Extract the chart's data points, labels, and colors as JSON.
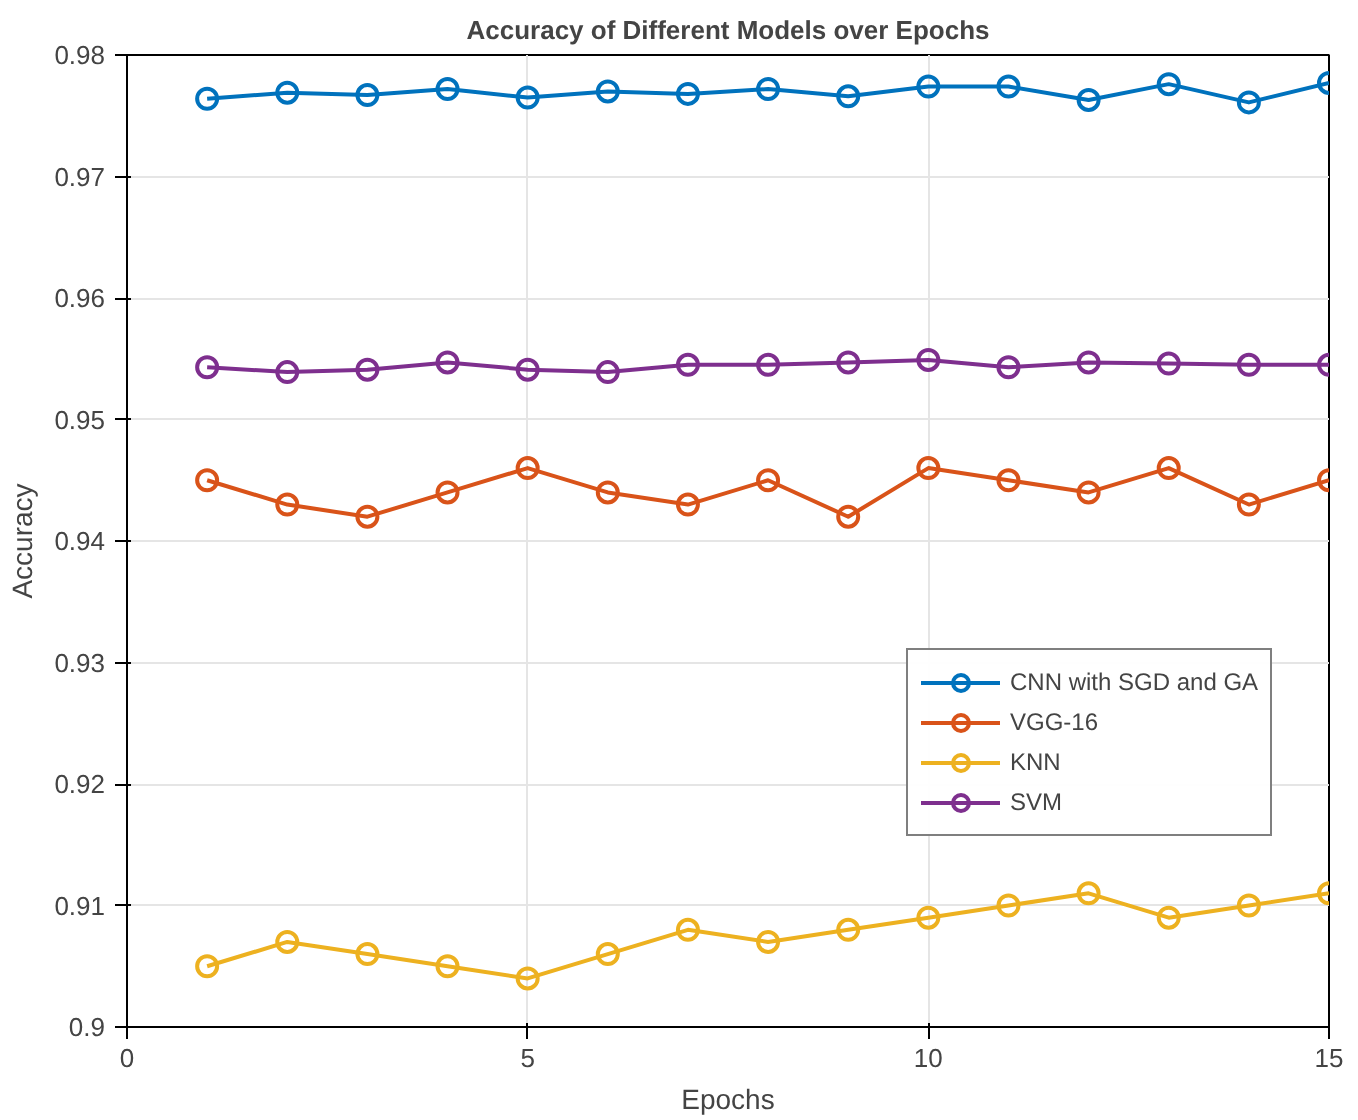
{
  "chart_data": {
    "type": "line",
    "title": "Accuracy of Different Models over Epochs",
    "xlabel": "Epochs",
    "ylabel": "Accuracy",
    "x": [
      1,
      2,
      3,
      4,
      5,
      6,
      7,
      8,
      9,
      10,
      11,
      12,
      13,
      14,
      15
    ],
    "xlim": [
      0,
      15
    ],
    "xticks": [
      0,
      5,
      10,
      15
    ],
    "ylim": [
      0.9,
      0.98
    ],
    "yticks": [
      0.9,
      0.91,
      0.92,
      0.93,
      0.94,
      0.95,
      0.96,
      0.97,
      0.98
    ],
    "grid": true,
    "legend": "right",
    "marker": "circle",
    "line_style": "solid",
    "series": [
      {
        "name": "CNN with SGD and GA",
        "color": "#0072bd",
        "values": [
          0.9764,
          0.9769,
          0.9767,
          0.9772,
          0.9765,
          0.977,
          0.9768,
          0.9772,
          0.9766,
          0.9774,
          0.9774,
          0.9763,
          0.9776,
          0.9761,
          0.9777
        ]
      },
      {
        "name": "VGG-16",
        "color": "#d95319",
        "values": [
          0.945,
          0.943,
          0.942,
          0.944,
          0.946,
          0.944,
          0.943,
          0.945,
          0.942,
          0.946,
          0.945,
          0.944,
          0.946,
          0.943,
          0.945
        ]
      },
      {
        "name": "KNN",
        "color": "#edb120",
        "values": [
          0.905,
          0.907,
          0.906,
          0.905,
          0.904,
          0.906,
          0.908,
          0.907,
          0.908,
          0.909,
          0.91,
          0.911,
          0.909,
          0.91,
          0.911
        ]
      },
      {
        "name": "SVM",
        "color": "#7e2f8e",
        "values": [
          0.9543,
          0.9539,
          0.9541,
          0.9547,
          0.9541,
          0.9539,
          0.9545,
          0.9545,
          0.9547,
          0.9549,
          0.9543,
          0.9547,
          0.9546,
          0.9545,
          0.9545
        ]
      }
    ]
  }
}
